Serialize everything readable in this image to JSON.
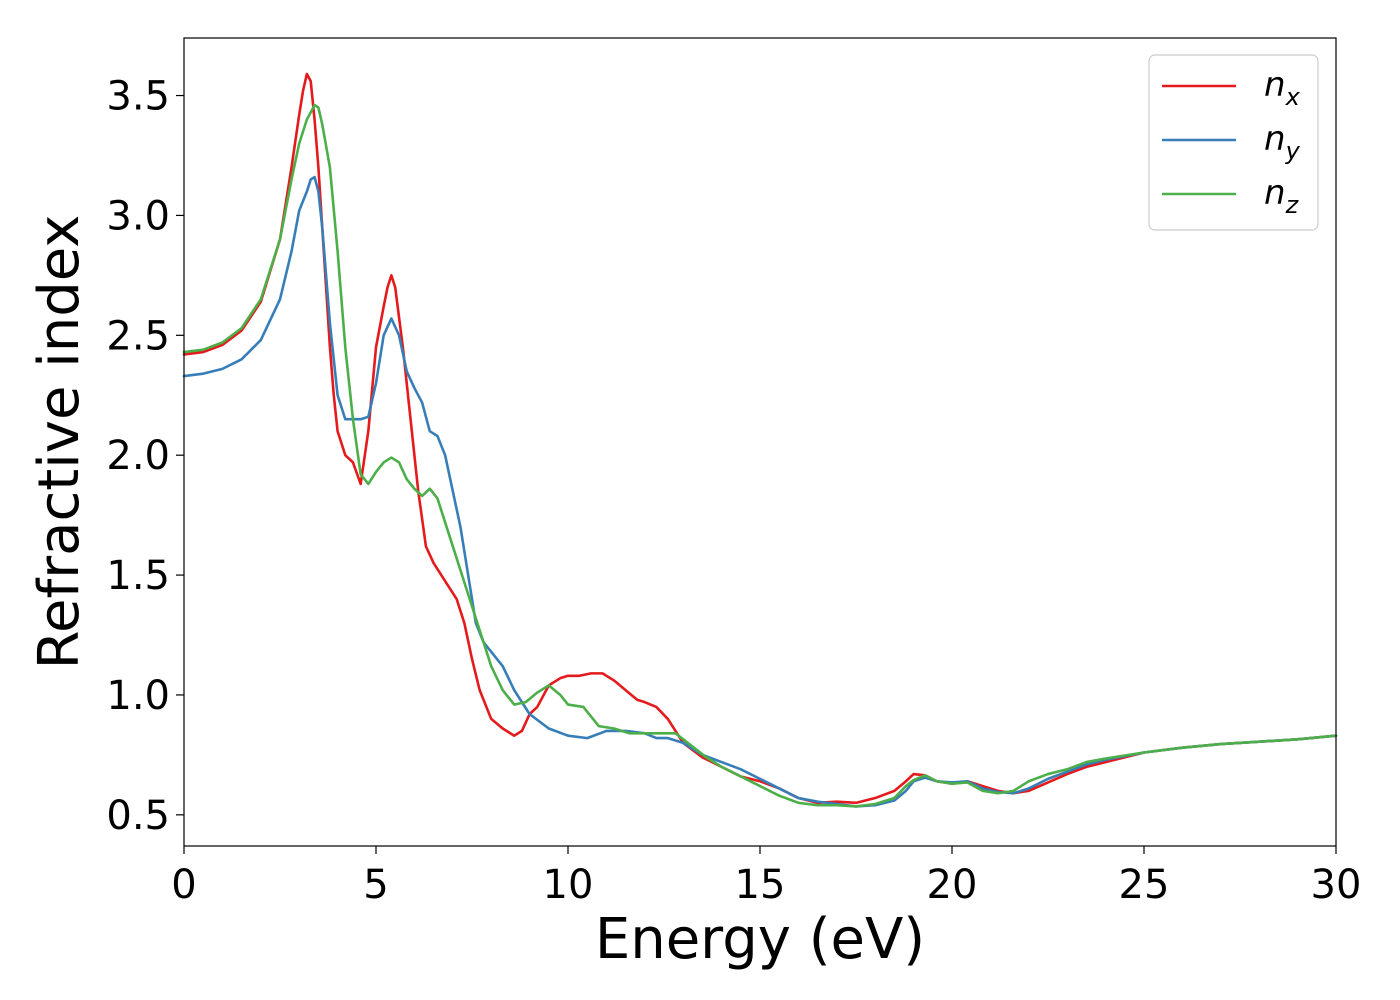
{
  "chart_data": {
    "type": "line",
    "title": "",
    "xlabel": "Energy (eV)",
    "ylabel": "Refractive index",
    "xlim": [
      0,
      30
    ],
    "ylim": [
      0.37,
      3.74
    ],
    "xticks": [
      0,
      5,
      10,
      15,
      20,
      25,
      30
    ],
    "xtick_labels": [
      "0",
      "5",
      "10",
      "15",
      "20",
      "25",
      "30"
    ],
    "yticks": [
      0.5,
      1.0,
      1.5,
      2.0,
      2.5,
      3.0,
      3.5
    ],
    "ytick_labels": [
      "0.5",
      "1.0",
      "1.5",
      "2.0",
      "2.5",
      "3.0",
      "3.5"
    ],
    "grid": false,
    "legend_position": "top-right",
    "series": [
      {
        "name": "n_x",
        "label_main": "n",
        "label_sub": "x",
        "color": "#e41a1c",
        "x": [
          0,
          0.5,
          1.0,
          1.5,
          2.0,
          2.5,
          2.8,
          3.0,
          3.1,
          3.2,
          3.3,
          3.4,
          3.5,
          3.6,
          3.7,
          3.8,
          3.9,
          4.0,
          4.2,
          4.4,
          4.6,
          4.8,
          5.0,
          5.2,
          5.3,
          5.4,
          5.5,
          5.7,
          5.9,
          6.1,
          6.3,
          6.5,
          6.7,
          6.9,
          7.1,
          7.3,
          7.5,
          7.7,
          8.0,
          8.3,
          8.6,
          8.8,
          9.0,
          9.2,
          9.5,
          9.8,
          10.0,
          10.3,
          10.6,
          10.9,
          11.2,
          11.5,
          11.8,
          12.0,
          12.3,
          12.6,
          13.0,
          13.5,
          14.0,
          14.5,
          15.0,
          15.5,
          16.0,
          16.5,
          17.0,
          17.5,
          18.0,
          18.5,
          18.8,
          19.0,
          19.3,
          19.6,
          20.0,
          20.4,
          20.8,
          21.2,
          21.6,
          22.0,
          22.5,
          23.0,
          23.5,
          24.0,
          25.0,
          26.0,
          27.0,
          28.0,
          29.0,
          30.0
        ],
        "y": [
          2.42,
          2.43,
          2.46,
          2.52,
          2.64,
          2.9,
          3.2,
          3.42,
          3.52,
          3.59,
          3.56,
          3.4,
          3.2,
          2.95,
          2.7,
          2.45,
          2.25,
          2.1,
          2.0,
          1.97,
          1.88,
          2.1,
          2.45,
          2.62,
          2.7,
          2.75,
          2.7,
          2.45,
          2.15,
          1.85,
          1.62,
          1.55,
          1.5,
          1.45,
          1.4,
          1.3,
          1.15,
          1.02,
          0.9,
          0.86,
          0.83,
          0.85,
          0.92,
          0.95,
          1.04,
          1.07,
          1.08,
          1.08,
          1.09,
          1.09,
          1.06,
          1.02,
          0.98,
          0.97,
          0.95,
          0.9,
          0.8,
          0.74,
          0.7,
          0.66,
          0.64,
          0.61,
          0.57,
          0.55,
          0.555,
          0.55,
          0.57,
          0.6,
          0.64,
          0.67,
          0.665,
          0.64,
          0.63,
          0.64,
          0.62,
          0.6,
          0.59,
          0.6,
          0.635,
          0.67,
          0.7,
          0.72,
          0.76,
          0.78,
          0.795,
          0.805,
          0.815,
          0.83
        ]
      },
      {
        "name": "n_y",
        "label_main": "n",
        "label_sub": "y",
        "color": "#377eb8",
        "x": [
          0,
          0.5,
          1.0,
          1.5,
          2.0,
          2.5,
          2.8,
          3.0,
          3.2,
          3.3,
          3.4,
          3.5,
          3.6,
          3.8,
          4.0,
          4.2,
          4.4,
          4.6,
          4.8,
          5.0,
          5.2,
          5.4,
          5.6,
          5.8,
          6.0,
          6.2,
          6.4,
          6.6,
          6.8,
          7.0,
          7.2,
          7.4,
          7.6,
          7.8,
          8.0,
          8.3,
          8.6,
          9.0,
          9.5,
          10.0,
          10.5,
          11.0,
          11.5,
          12.0,
          12.3,
          12.6,
          13.0,
          13.5,
          14.0,
          14.5,
          15.0,
          15.5,
          16.0,
          16.5,
          17.0,
          17.5,
          18.0,
          18.5,
          18.8,
          19.0,
          19.3,
          19.6,
          20.0,
          20.4,
          20.8,
          21.2,
          21.6,
          22.0,
          22.5,
          23.0,
          23.5,
          24.0,
          25.0,
          26.0,
          27.0,
          28.0,
          29.0,
          30.0
        ],
        "y": [
          2.33,
          2.34,
          2.36,
          2.4,
          2.48,
          2.65,
          2.85,
          3.02,
          3.1,
          3.15,
          3.16,
          3.1,
          2.95,
          2.55,
          2.25,
          2.15,
          2.15,
          2.15,
          2.16,
          2.3,
          2.5,
          2.57,
          2.5,
          2.35,
          2.28,
          2.22,
          2.1,
          2.08,
          2.0,
          1.85,
          1.7,
          1.5,
          1.3,
          1.22,
          1.18,
          1.12,
          1.02,
          0.92,
          0.86,
          0.83,
          0.82,
          0.85,
          0.85,
          0.84,
          0.82,
          0.82,
          0.8,
          0.75,
          0.72,
          0.69,
          0.65,
          0.61,
          0.57,
          0.555,
          0.545,
          0.535,
          0.54,
          0.56,
          0.6,
          0.64,
          0.655,
          0.64,
          0.635,
          0.64,
          0.61,
          0.595,
          0.59,
          0.61,
          0.65,
          0.68,
          0.71,
          0.73,
          0.76,
          0.78,
          0.795,
          0.805,
          0.815,
          0.83
        ]
      },
      {
        "name": "n_z",
        "label_main": "n",
        "label_sub": "z",
        "color": "#4daf4a",
        "x": [
          0,
          0.5,
          1.0,
          1.5,
          2.0,
          2.5,
          2.8,
          3.0,
          3.2,
          3.3,
          3.4,
          3.5,
          3.6,
          3.8,
          4.0,
          4.2,
          4.4,
          4.6,
          4.8,
          5.0,
          5.2,
          5.4,
          5.6,
          5.8,
          6.0,
          6.2,
          6.4,
          6.6,
          6.8,
          7.0,
          7.2,
          7.4,
          7.6,
          7.8,
          8.0,
          8.3,
          8.6,
          8.9,
          9.2,
          9.5,
          9.8,
          10.0,
          10.4,
          10.8,
          11.2,
          11.6,
          12.0,
          12.4,
          12.8,
          13.2,
          13.6,
          14.0,
          14.5,
          15.0,
          15.5,
          16.0,
          16.5,
          17.0,
          17.5,
          18.0,
          18.5,
          18.8,
          19.0,
          19.3,
          19.6,
          20.0,
          20.4,
          20.8,
          21.2,
          21.6,
          22.0,
          22.5,
          23.0,
          23.5,
          24.0,
          25.0,
          26.0,
          27.0,
          28.0,
          29.0,
          30.0
        ],
        "y": [
          2.43,
          2.44,
          2.47,
          2.53,
          2.65,
          2.9,
          3.15,
          3.3,
          3.4,
          3.43,
          3.46,
          3.45,
          3.38,
          3.2,
          2.85,
          2.45,
          2.15,
          1.92,
          1.88,
          1.93,
          1.97,
          1.99,
          1.97,
          1.9,
          1.86,
          1.83,
          1.86,
          1.82,
          1.72,
          1.62,
          1.52,
          1.42,
          1.32,
          1.22,
          1.12,
          1.02,
          0.96,
          0.97,
          1.01,
          1.04,
          1.0,
          0.96,
          0.95,
          0.87,
          0.86,
          0.84,
          0.84,
          0.84,
          0.84,
          0.79,
          0.74,
          0.7,
          0.66,
          0.62,
          0.58,
          0.55,
          0.54,
          0.54,
          0.535,
          0.545,
          0.57,
          0.62,
          0.645,
          0.665,
          0.64,
          0.63,
          0.635,
          0.6,
          0.59,
          0.6,
          0.64,
          0.67,
          0.69,
          0.72,
          0.735,
          0.76,
          0.78,
          0.795,
          0.805,
          0.815,
          0.83
        ]
      }
    ]
  }
}
